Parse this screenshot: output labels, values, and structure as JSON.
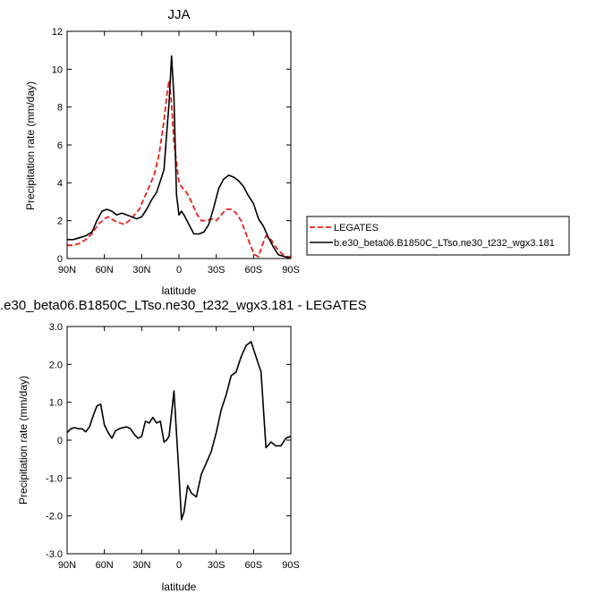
{
  "chart_data": [
    {
      "type": "line",
      "title": "JJA",
      "xlabel": "latitude",
      "ylabel": "Precipitation rate (mm/day)",
      "xlim": [
        90,
        -90
      ],
      "ylim": [
        0,
        12
      ],
      "x_ticks": [
        90,
        60,
        30,
        0,
        -30,
        -60,
        -90
      ],
      "x_tick_labels": [
        "90N",
        "60N",
        "30N",
        "0",
        "30S",
        "60S",
        "90S"
      ],
      "y_ticks": [
        0,
        2,
        4,
        6,
        8,
        10,
        12
      ],
      "y_tick_labels": [
        "0",
        "2",
        "4",
        "6",
        "8",
        "10",
        "12"
      ],
      "legend": "right",
      "series": [
        {
          "name": "LEGATES",
          "color": "#e8201f",
          "dash": "dashed",
          "x": [
            90,
            85,
            80,
            75,
            70,
            65,
            60,
            57,
            52,
            48,
            44,
            40,
            36,
            32,
            28,
            24,
            20,
            16,
            12,
            10,
            8,
            6,
            4,
            2,
            0,
            -3,
            -6,
            -10,
            -14,
            -18,
            -22,
            -26,
            -30,
            -34,
            -38,
            -42,
            -46,
            -50,
            -54,
            -58,
            -61,
            -64,
            -67,
            -70,
            -74,
            -78,
            -82,
            -86,
            -90
          ],
          "y": [
            0.7,
            0.7,
            0.8,
            1.0,
            1.3,
            1.8,
            2.1,
            2.2,
            2.0,
            1.9,
            1.8,
            2.0,
            2.3,
            2.6,
            3.2,
            3.8,
            4.4,
            5.5,
            7.3,
            8.5,
            9.4,
            8.2,
            6.1,
            5.1,
            4.0,
            3.7,
            3.5,
            3.0,
            2.4,
            2.0,
            2.0,
            2.1,
            2.0,
            2.3,
            2.6,
            2.6,
            2.4,
            2.0,
            1.3,
            0.6,
            0.2,
            0.1,
            0.7,
            1.2,
            1.0,
            0.6,
            0.3,
            0.1,
            0.1
          ]
        },
        {
          "name": "b.e30_beta06.B1850C_LTso.ne30_t232_wgx3.181",
          "color": "#000000",
          "dash": "solid",
          "x": [
            90,
            85,
            80,
            75,
            70,
            66,
            62,
            58,
            54,
            50,
            46,
            42,
            38,
            34,
            30,
            26,
            22,
            18,
            14,
            12,
            10,
            8,
            6,
            4,
            2,
            0,
            -2,
            -4,
            -8,
            -12,
            -16,
            -20,
            -24,
            -28,
            -32,
            -36,
            -40,
            -44,
            -48,
            -52,
            -56,
            -60,
            -64,
            -68,
            -72,
            -76,
            -80,
            -85,
            -90
          ],
          "y": [
            1.0,
            1.0,
            1.1,
            1.2,
            1.4,
            2.0,
            2.5,
            2.6,
            2.5,
            2.3,
            2.4,
            2.3,
            2.2,
            2.1,
            2.2,
            2.6,
            3.1,
            3.5,
            4.3,
            4.7,
            6.5,
            8.2,
            10.7,
            8.5,
            3.4,
            2.3,
            2.5,
            2.3,
            1.8,
            1.3,
            1.3,
            1.4,
            1.8,
            2.7,
            3.7,
            4.2,
            4.4,
            4.3,
            4.1,
            3.8,
            3.3,
            2.9,
            2.1,
            1.7,
            1.1,
            0.6,
            0.2,
            0.1,
            0.0
          ]
        }
      ]
    },
    {
      "type": "line",
      "title": ".e30_beta06.B1850C_LTso.ne30_t232_wgx3.181 - LEGATES",
      "xlabel": "latitude",
      "ylabel": "Precipitation rate (mm/day)",
      "xlim": [
        90,
        -90
      ],
      "ylim": [
        -3,
        3
      ],
      "x_ticks": [
        90,
        60,
        30,
        0,
        -30,
        -60,
        -90
      ],
      "x_tick_labels": [
        "90N",
        "60N",
        "30N",
        "0",
        "30S",
        "60S",
        "90S"
      ],
      "y_ticks": [
        -3,
        -2,
        -1,
        0,
        1,
        2,
        3
      ],
      "y_tick_labels": [
        "-3.0",
        "-2.0",
        "-1.0",
        "0",
        "1.0",
        "2.0",
        "3.0"
      ],
      "series": [
        {
          "color": "#000000",
          "dash": "solid",
          "x": [
            90,
            87,
            84,
            81,
            78,
            75,
            72,
            69,
            66,
            63,
            60,
            57,
            54,
            51,
            48,
            45,
            42,
            39,
            36,
            33,
            30,
            27,
            24,
            21,
            18,
            15,
            12,
            10,
            8,
            6,
            4,
            2,
            0,
            -2,
            -4,
            -7,
            -10,
            -14,
            -18,
            -22,
            -26,
            -30,
            -34,
            -38,
            -42,
            -46,
            -50,
            -54,
            -58,
            -60,
            -62,
            -66,
            -70,
            -74,
            -78,
            -82,
            -86,
            -90
          ],
          "y": [
            0.2,
            0.3,
            0.33,
            0.3,
            0.3,
            0.22,
            0.35,
            0.65,
            0.9,
            0.95,
            0.4,
            0.2,
            0.05,
            0.25,
            0.3,
            0.33,
            0.35,
            0.3,
            0.15,
            0.05,
            0.1,
            0.5,
            0.45,
            0.6,
            0.45,
            0.5,
            -0.05,
            0.0,
            0.1,
            0.7,
            1.3,
            0.2,
            -0.9,
            -2.1,
            -1.9,
            -1.2,
            -1.4,
            -1.5,
            -0.9,
            -0.6,
            -0.3,
            0.2,
            0.8,
            1.2,
            1.7,
            1.8,
            2.2,
            2.5,
            2.6,
            2.4,
            2.2,
            1.8,
            -0.2,
            -0.05,
            -0.15,
            -0.15,
            0.05,
            0.1
          ]
        }
      ]
    }
  ]
}
